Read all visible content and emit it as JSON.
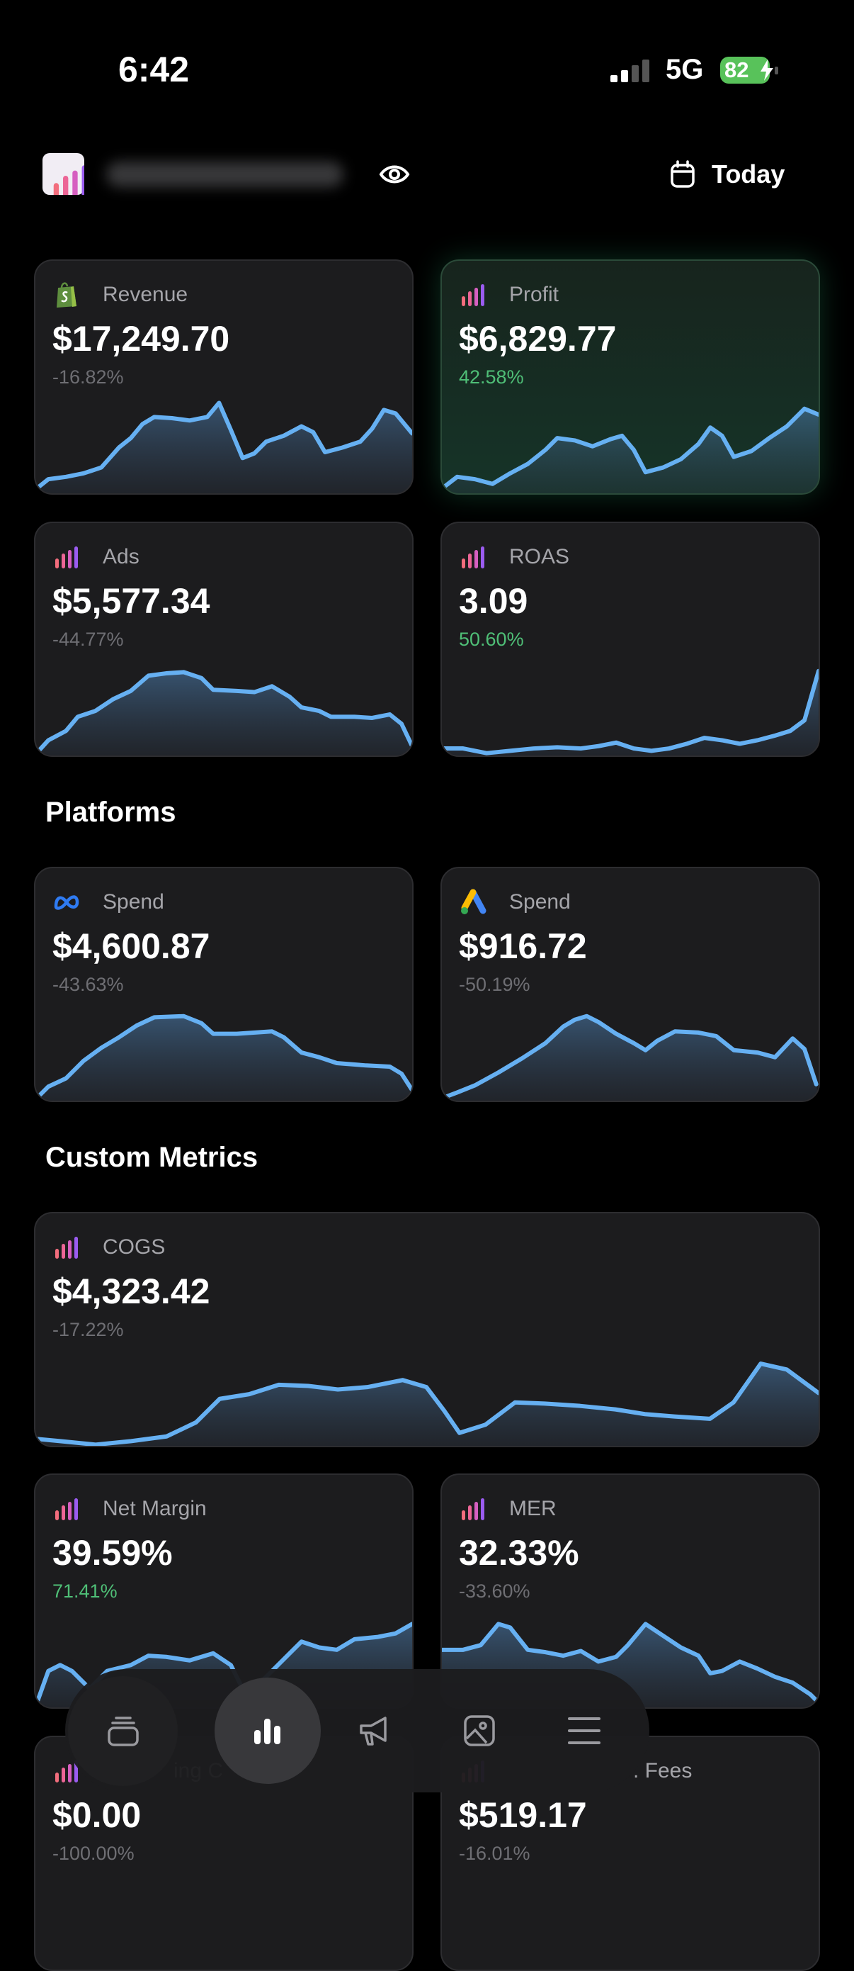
{
  "status_bar": {
    "time": "6:42",
    "network": "5G",
    "battery": "82"
  },
  "header": {
    "date_range": "Today"
  },
  "overview": [
    {
      "label": "Revenue",
      "value": "$17,249.70",
      "change": "-16.82%"
    },
    {
      "label": "Profit",
      "value": "$6,829.77",
      "change": "42.58%"
    },
    {
      "label": "Ads",
      "value": "$5,577.34",
      "change": "-44.77%"
    },
    {
      "label": "ROAS",
      "value": "3.09",
      "change": "50.60%"
    }
  ],
  "platforms": {
    "title": "Platforms",
    "cards": [
      {
        "label": "Spend",
        "value": "$4,600.87",
        "change": "-43.63%"
      },
      {
        "label": "Spend",
        "value": "$916.72",
        "change": "-50.19%"
      }
    ]
  },
  "custom_metrics": {
    "title": "Custom Metrics",
    "cards": [
      {
        "label": "COGS",
        "value": "$4,323.42",
        "change": "-17.22%"
      },
      {
        "label": "Net Margin",
        "value": "39.59%",
        "change": "71.41%"
      },
      {
        "label": "MER",
        "value": "32.33%",
        "change": "-33.60%"
      },
      {
        "label": "ing C",
        "value": "$0.00",
        "change": "-100.00%"
      },
      {
        "label": ". Fees",
        "value": "$519.17",
        "change": "-16.01%"
      }
    ]
  }
}
